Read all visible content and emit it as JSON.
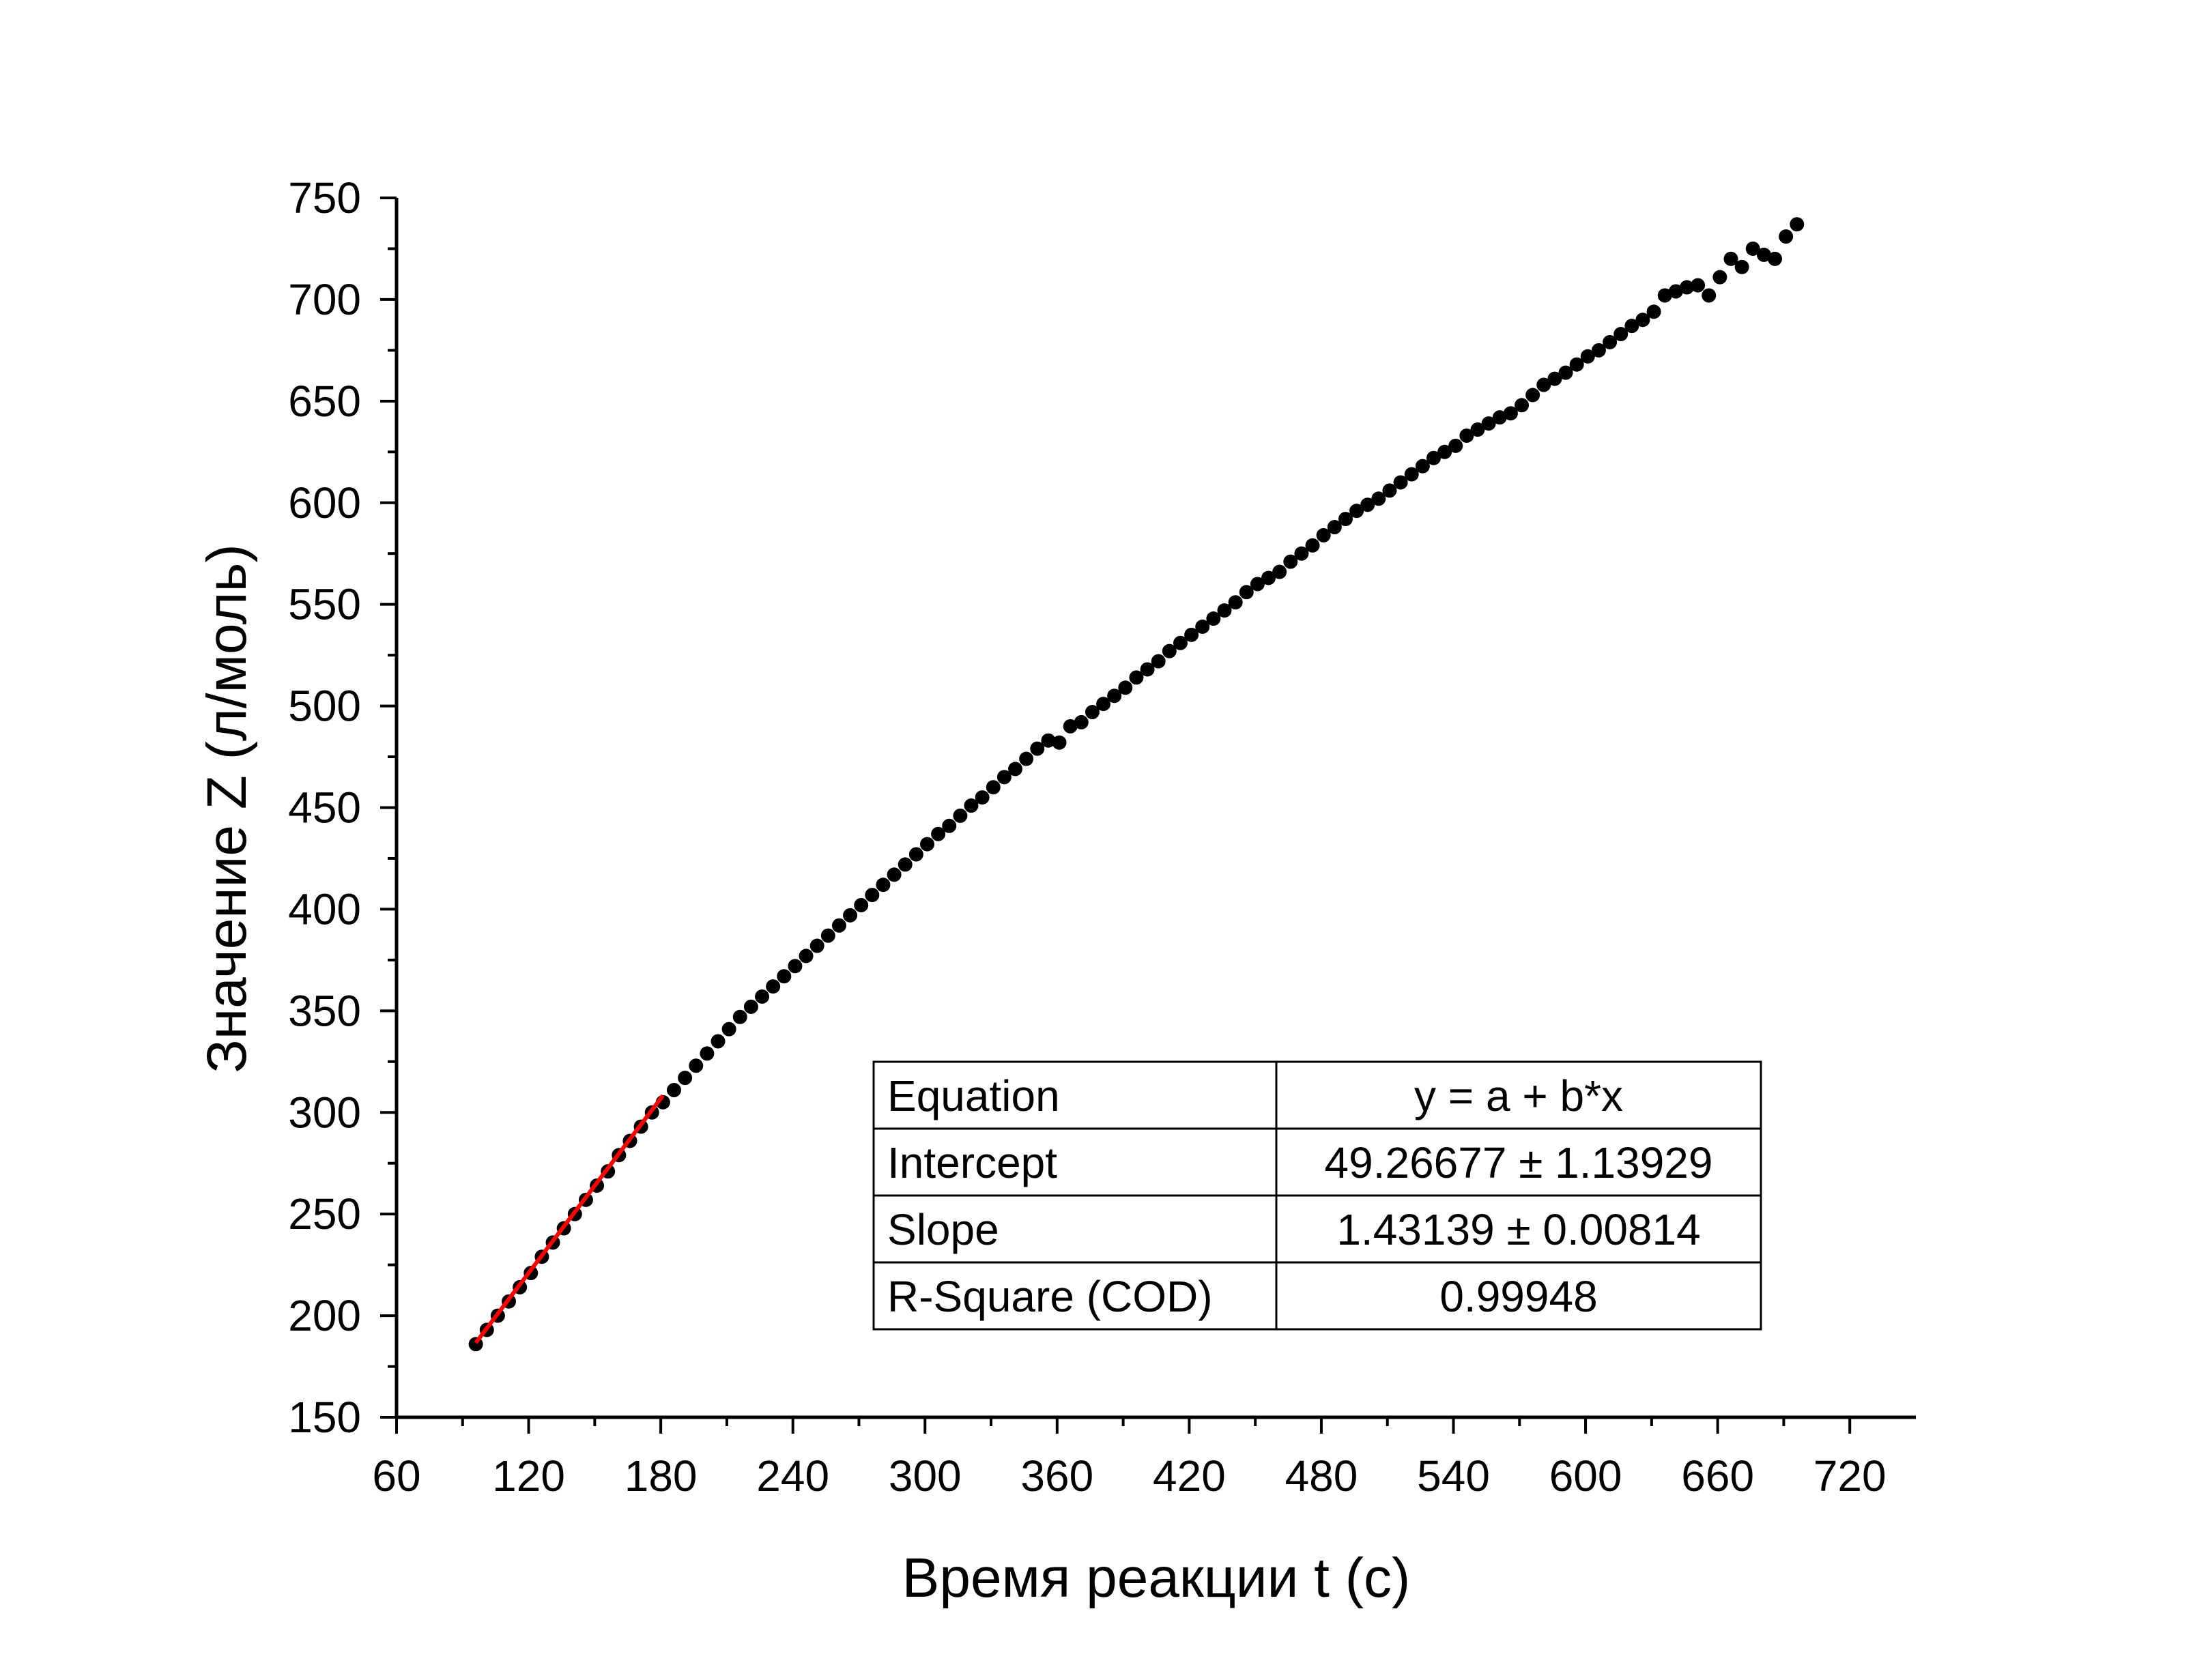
{
  "chart_data": {
    "type": "scatter",
    "xlabel": "Время реакции t (с)",
    "ylabel": "Значение Z (л/моль)",
    "xlim": [
      60,
      750
    ],
    "ylim": [
      150,
      750
    ],
    "x_ticks": [
      60,
      120,
      180,
      240,
      300,
      360,
      420,
      480,
      540,
      600,
      660,
      720
    ],
    "y_ticks": [
      150,
      200,
      250,
      300,
      350,
      400,
      450,
      500,
      550,
      600,
      650,
      700,
      750
    ],
    "grid": false,
    "colors": {
      "points": "#000000",
      "fit_line": "#ff0000",
      "axis": "#000000"
    },
    "series": [
      {
        "marker": "filled-circle",
        "x": [
          96,
          101,
          106,
          111,
          116,
          121,
          126,
          131,
          136,
          141,
          146,
          151,
          156,
          161,
          166,
          171,
          176,
          181,
          186,
          191,
          196,
          201,
          206,
          211,
          216,
          221,
          226,
          231,
          236,
          241,
          246,
          251,
          256,
          261,
          266,
          271,
          276,
          281,
          286,
          291,
          296,
          301,
          306,
          311,
          316,
          321,
          326,
          331,
          336,
          341,
          346,
          351,
          356,
          361,
          366,
          371,
          376,
          381,
          386,
          391,
          396,
          401,
          406,
          411,
          416,
          421,
          426,
          431,
          436,
          441,
          446,
          451,
          456,
          461,
          466,
          471,
          476,
          481,
          486,
          491,
          496,
          501,
          506,
          511,
          516,
          521,
          526,
          531,
          536,
          541,
          546,
          551,
          556,
          561,
          566,
          571,
          576,
          581,
          586,
          591,
          596,
          601,
          606,
          611,
          616,
          621,
          626,
          631,
          636,
          641,
          646,
          651,
          656,
          661,
          666,
          671,
          676,
          681,
          686,
          691,
          696
        ],
        "y": [
          186,
          193,
          200,
          207,
          214,
          221,
          229,
          236,
          243,
          250,
          257,
          264,
          271,
          279,
          286,
          293,
          300,
          305,
          311,
          317,
          323,
          329,
          335,
          341,
          347,
          352,
          357,
          362,
          367,
          372,
          377,
          382,
          387,
          392,
          397,
          402,
          407,
          412,
          417,
          422,
          427,
          432,
          437,
          441,
          446,
          451,
          455,
          460,
          465,
          469,
          474,
          479,
          483,
          482,
          490,
          492,
          497,
          501,
          505,
          509,
          514,
          518,
          522,
          527,
          531,
          535,
          539,
          543,
          547,
          551,
          556,
          560,
          563,
          566,
          571,
          575,
          579,
          584,
          588,
          592,
          596,
          599,
          602,
          606,
          610,
          614,
          618,
          622,
          625,
          628,
          633,
          636,
          639,
          642,
          644,
          648,
          653,
          658,
          661,
          664,
          668,
          672,
          675,
          679,
          683,
          687,
          690,
          694,
          702,
          704,
          706,
          707,
          702,
          711,
          720,
          716,
          725,
          722,
          720,
          731,
          737
        ]
      }
    ],
    "fit_line": {
      "x_range": [
        96,
        181
      ],
      "intercept": 49.26677,
      "slope": 1.43139
    },
    "table": {
      "rows": [
        [
          "Equation",
          "y = a + b*x"
        ],
        [
          "Intercept",
          "49.26677 ± 1.13929"
        ],
        [
          "Slope",
          "1.43139 ± 0.00814"
        ],
        [
          "R-Square (COD)",
          "0.99948"
        ]
      ]
    }
  }
}
